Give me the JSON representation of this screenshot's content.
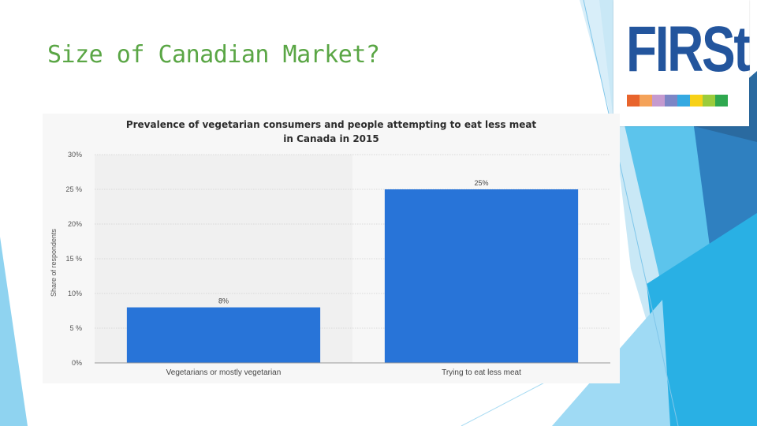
{
  "slide": {
    "title": "Size of Canadian Market?"
  },
  "logo": {
    "text": "FIRSt",
    "brand_color": "#23559d",
    "strip_colors": [
      "#e8642c",
      "#f4a259",
      "#c59acf",
      "#7c86c6",
      "#35a9e1",
      "#f7d117",
      "#9bcc3b",
      "#2fa84f"
    ]
  },
  "chart_data": {
    "type": "bar",
    "title": "Prevalence of vegetarian consumers and people attempting to eat less meat in Canada in 2015",
    "title_lines": [
      "Prevalence of vegetarian consumers and people attempting to eat less meat",
      "in Canada in 2015"
    ],
    "categories": [
      "Vegetarians or mostly vegetarian",
      "Trying to eat less meat"
    ],
    "values": [
      8,
      25
    ],
    "value_labels": [
      "8%",
      "25%"
    ],
    "ylabel": "Share of respondents",
    "xlabel": "",
    "ylim": [
      0,
      30
    ],
    "yticks": [
      0,
      5,
      10,
      15,
      20,
      25,
      30
    ],
    "ytick_labels": [
      "0%",
      "5 %",
      "10%",
      "15 %",
      "20%",
      "25 %",
      "30%"
    ],
    "grid": true,
    "bar_color": "#2874d8"
  }
}
